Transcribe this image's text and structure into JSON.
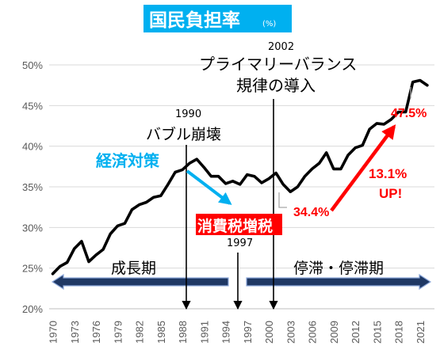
{
  "chart_data": {
    "type": "line",
    "title": "国民負担率",
    "title_unit": "(%)",
    "x_tick_labels": [
      "1970",
      "1973",
      "1976",
      "1979",
      "1982",
      "1985",
      "1988",
      "1991",
      "1994",
      "1997",
      "2000",
      "2003",
      "2006",
      "2009",
      "2012",
      "2015",
      "2018",
      "2021"
    ],
    "y_tick_labels": [
      "20%",
      "25%",
      "30%",
      "35%",
      "40%",
      "45%",
      "50%"
    ],
    "ylim": [
      20,
      50
    ],
    "xlim": [
      1969.5,
      2023
    ],
    "grid": true,
    "series": [
      {
        "x": [
          1970,
          1971,
          1972,
          1973,
          1974,
          1975,
          1976,
          1977,
          1978,
          1979,
          1980,
          1981,
          1982,
          1983,
          1984,
          1985,
          1986,
          1987,
          1988,
          1989,
          1990,
          1991,
          1992,
          1993,
          1994,
          1995,
          1996,
          1997,
          1998,
          1999,
          2000,
          2001,
          2002,
          2003,
          2004,
          2005,
          2006,
          2007,
          2008,
          2009,
          2010,
          2011,
          2012,
          2013,
          2014,
          2015,
          2016,
          2017,
          2018,
          2019,
          2020,
          2021,
          2022
        ],
        "values": [
          24.3,
          25.2,
          25.7,
          27.4,
          28.3,
          25.8,
          26.6,
          27.3,
          29.2,
          30.2,
          30.5,
          32.2,
          32.8,
          33.1,
          33.7,
          33.9,
          35.3,
          36.8,
          37.1,
          37.9,
          38.4,
          37.4,
          36.3,
          36.3,
          35.4,
          35.7,
          35.3,
          36.5,
          36.3,
          35.5,
          36.0,
          36.7,
          35.3,
          34.4,
          35.0,
          36.3,
          37.2,
          37.9,
          39.2,
          37.2,
          37.2,
          38.9,
          39.8,
          40.1,
          42.1,
          42.8,
          42.7,
          43.3,
          44.2,
          44.2,
          47.9,
          48.1,
          47.5
        ]
      }
    ],
    "annotations": {
      "event_1990_year": "1990",
      "event_1990_label": "バブル崩壊",
      "event_1997_year": "1997",
      "event_1997_label": "消費税増税",
      "event_2002_year": "2002",
      "event_2002_label_line1": "プライマリーバランス",
      "event_2002_label_line2": "規律の導入",
      "stimulus_label": "経済対策",
      "low_value_label": "34.4%",
      "high_value_label": "47.5%",
      "increase_label_line1": "13.1%",
      "increase_label_line2": "UP!",
      "period_growth": "成長期",
      "period_stagnation": "停滞・停滞期"
    },
    "colors": {
      "line": "#000000",
      "title_bg": "#00b0f0",
      "title_text": "#ffffff",
      "stimulus": "#00b0f0",
      "tax_bg": "#ff0000",
      "highlight": "#ff0000",
      "period_arrow_fill": "#1f3864",
      "period_arrow_edge": "#8ea9db",
      "grid": "#d9d9d9"
    }
  }
}
